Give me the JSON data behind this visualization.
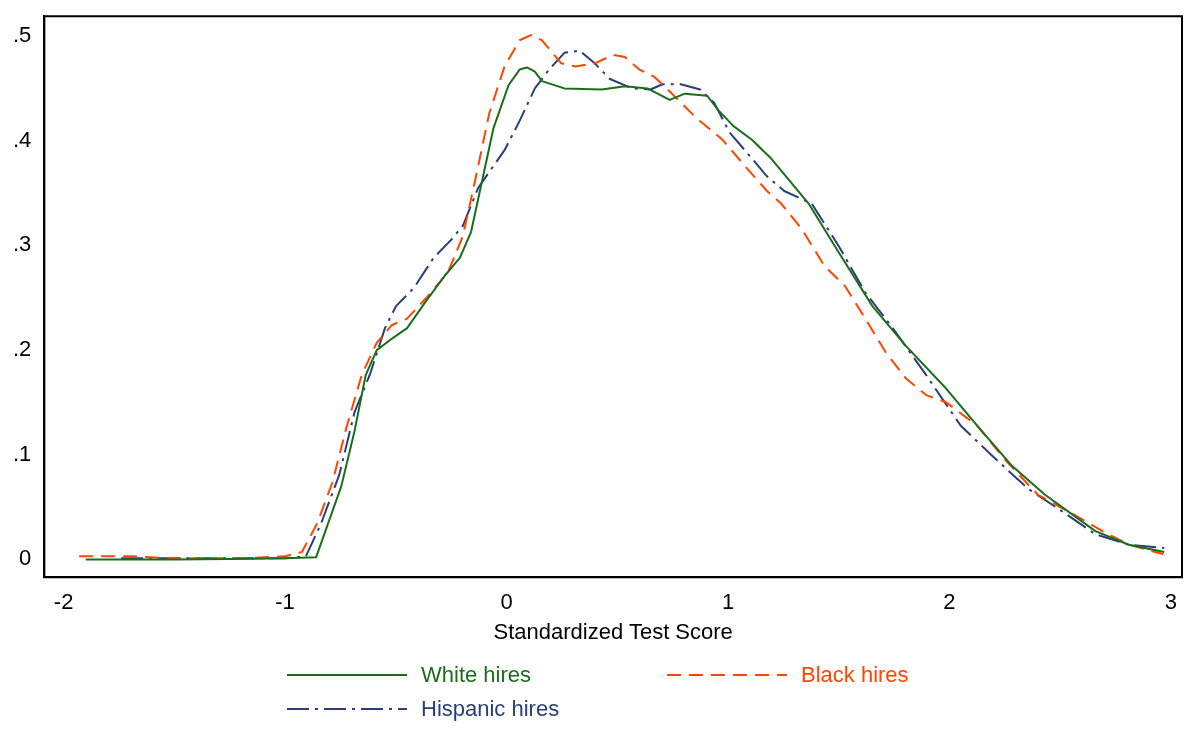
{
  "chart_data": {
    "type": "line",
    "xlabel": "Standardized Test Score",
    "xlim": [
      -2.087,
      3.05
    ],
    "xticks": [
      -2,
      -1,
      0,
      1,
      2,
      3
    ],
    "ylim": [
      -0.017,
      0.519
    ],
    "yticks": [
      0,
      {
        "value": 0.1,
        "label": ".1"
      },
      {
        "value": 0.2,
        "label": ".2"
      },
      {
        "value": 0.3,
        "label": ".3"
      },
      {
        "value": 0.4,
        "label": ".4"
      },
      {
        "value": 0.5,
        "label": ".5"
      }
    ],
    "grid": false,
    "legend": "bottom",
    "series": [
      {
        "name": "White hires",
        "color": "#1a6e1a",
        "line_style": "solid",
        "x": [
          -1.9,
          -1.5,
          -1.0,
          -0.86,
          -0.746,
          -0.686,
          -0.636,
          -0.586,
          -0.517,
          -0.449,
          -0.366,
          -0.279,
          -0.211,
          -0.16,
          -0.11,
          -0.059,
          0.009,
          0.059,
          0.092,
          0.128,
          0.16,
          0.261,
          0.43,
          0.535,
          0.636,
          0.737,
          0.805,
          0.906,
          0.957,
          1.025,
          1.108,
          1.195,
          1.364,
          1.501,
          1.652,
          1.803,
          1.986,
          2.124,
          2.279,
          2.43,
          2.659,
          2.81,
          2.97
        ],
        "values": [
          0.0,
          0.0,
          0.001,
          0.002,
          0.07,
          0.123,
          0.176,
          0.2,
          0.211,
          0.221,
          0.246,
          0.271,
          0.288,
          0.313,
          0.362,
          0.412,
          0.453,
          0.468,
          0.47,
          0.466,
          0.457,
          0.45,
          0.449,
          0.452,
          0.45,
          0.439,
          0.445,
          0.443,
          0.429,
          0.414,
          0.401,
          0.383,
          0.34,
          0.293,
          0.242,
          0.204,
          0.163,
          0.128,
          0.09,
          0.062,
          0.027,
          0.014,
          0.007
        ]
      },
      {
        "name": "Black hires",
        "color": "#ff4500",
        "line_style": "dashed",
        "x": [
          -1.93,
          -1.7,
          -1.5,
          -1.2,
          -1.0,
          -0.924,
          -0.856,
          -0.787,
          -0.723,
          -0.654,
          -0.586,
          -0.517,
          -0.449,
          -0.366,
          -0.265,
          -0.197,
          -0.146,
          -0.078,
          -0.009,
          0.059,
          0.11,
          0.16,
          0.247,
          0.311,
          0.398,
          0.481,
          0.535,
          0.6,
          0.668,
          0.737,
          0.856,
          0.975,
          1.076,
          1.176,
          1.24,
          1.332,
          1.437,
          1.529,
          1.62,
          1.712,
          1.803,
          1.895,
          1.986,
          2.124,
          2.261,
          2.398,
          2.535,
          2.691,
          2.81,
          2.966
        ],
        "values": [
          0.003,
          0.003,
          0.001,
          0.001,
          0.003,
          0.007,
          0.034,
          0.073,
          0.126,
          0.176,
          0.207,
          0.224,
          0.23,
          0.249,
          0.274,
          0.309,
          0.358,
          0.426,
          0.471,
          0.496,
          0.501,
          0.496,
          0.474,
          0.471,
          0.474,
          0.482,
          0.48,
          0.468,
          0.461,
          0.447,
          0.422,
          0.401,
          0.376,
          0.352,
          0.34,
          0.316,
          0.28,
          0.261,
          0.23,
          0.198,
          0.173,
          0.157,
          0.15,
          0.128,
          0.093,
          0.062,
          0.046,
          0.027,
          0.014,
          0.005
        ]
      },
      {
        "name": "Hispanic hires",
        "color": "#2a3f7a",
        "line_style": "dashdot",
        "x": [
          -1.74,
          -1.4,
          -1.0,
          -0.906,
          -0.838,
          -0.755,
          -0.686,
          -0.618,
          -0.549,
          -0.499,
          -0.416,
          -0.33,
          -0.247,
          -0.197,
          -0.128,
          -0.059,
          -0.009,
          0.059,
          0.128,
          0.192,
          0.261,
          0.33,
          0.398,
          0.467,
          0.568,
          0.65,
          0.705,
          0.787,
          0.874,
          0.938,
          1.007,
          1.076,
          1.176,
          1.254,
          1.378,
          1.501,
          1.62,
          1.744,
          1.895,
          2.05,
          2.188,
          2.352,
          2.508,
          2.659,
          2.81,
          2.97
        ],
        "values": [
          0.001,
          0.001,
          0.001,
          0.003,
          0.034,
          0.081,
          0.141,
          0.176,
          0.221,
          0.242,
          0.26,
          0.288,
          0.306,
          0.319,
          0.355,
          0.376,
          0.391,
          0.419,
          0.45,
          0.468,
          0.484,
          0.486,
          0.474,
          0.459,
          0.45,
          0.449,
          0.454,
          0.454,
          0.449,
          0.436,
          0.408,
          0.391,
          0.366,
          0.352,
          0.34,
          0.299,
          0.255,
          0.221,
          0.176,
          0.128,
          0.1,
          0.068,
          0.046,
          0.024,
          0.014,
          0.011
        ]
      }
    ]
  }
}
